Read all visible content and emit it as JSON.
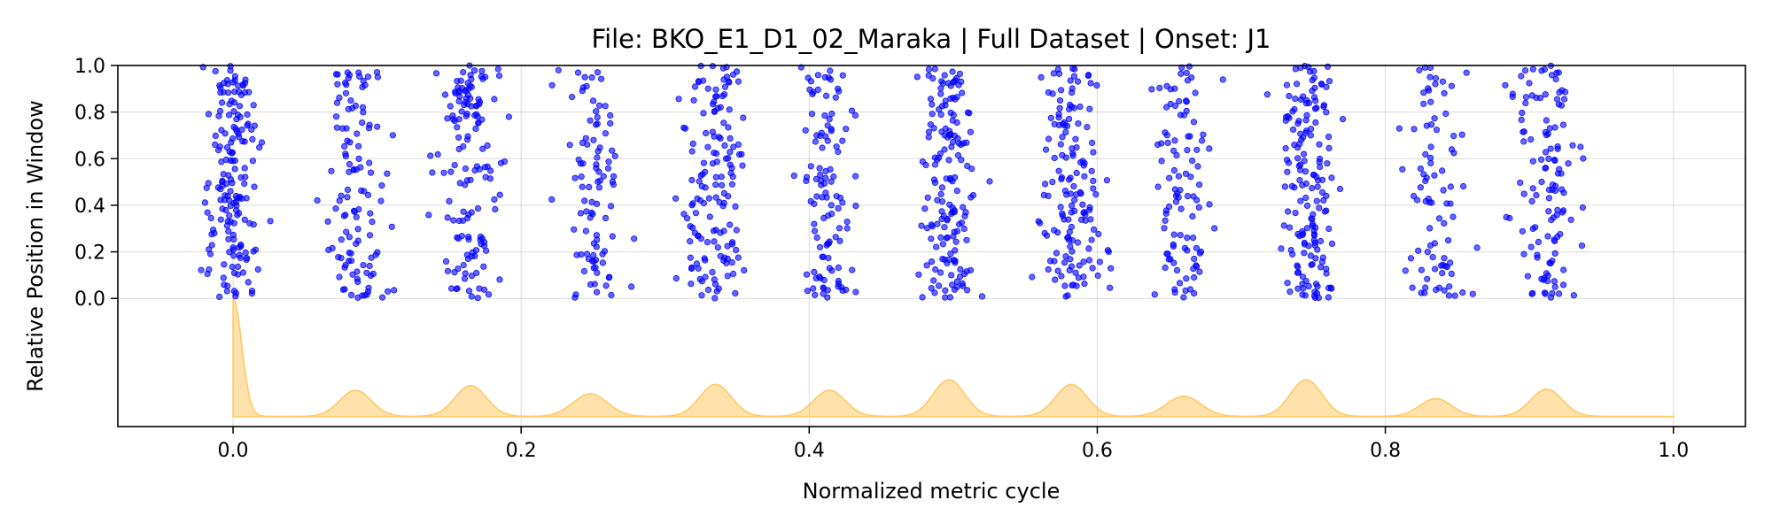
{
  "chart_data": {
    "type": "scatter",
    "title": "File: BKO_E1_D1_02_Maraka | Full Dataset | Onset: J1",
    "xlabel": "Normalized metric cycle",
    "ylabel": "Relative Position in Window",
    "xlim": [
      -0.08,
      1.05
    ],
    "ylim": [
      -0.55,
      1.0
    ],
    "x_ticks": [
      "0.0",
      "0.2",
      "0.4",
      "0.6",
      "0.8",
      "1.0"
    ],
    "x_tick_values": [
      0.0,
      0.2,
      0.4,
      0.6,
      0.8,
      1.0
    ],
    "y_ticks": [
      "0.0",
      "0.2",
      "0.4",
      "0.6",
      "0.8",
      "1.0"
    ],
    "y_tick_values": [
      0.0,
      0.2,
      0.4,
      0.6,
      0.8,
      1.0
    ],
    "grid": true,
    "scatter_color": "#0000ff",
    "density_color": "#ffc966",
    "onset_clusters": [
      {
        "center": 0.0,
        "spread": 0.008,
        "count": 170
      },
      {
        "center": 0.085,
        "spread": 0.009,
        "count": 115
      },
      {
        "center": 0.163,
        "spread": 0.009,
        "count": 140
      },
      {
        "center": 0.25,
        "spread": 0.009,
        "count": 95
      },
      {
        "center": 0.335,
        "spread": 0.009,
        "count": 145
      },
      {
        "center": 0.414,
        "spread": 0.008,
        "count": 110
      },
      {
        "center": 0.497,
        "spread": 0.009,
        "count": 160
      },
      {
        "center": 0.582,
        "spread": 0.009,
        "count": 150
      },
      {
        "center": 0.66,
        "spread": 0.009,
        "count": 100
      },
      {
        "center": 0.745,
        "spread": 0.009,
        "count": 165
      },
      {
        "center": 0.835,
        "spread": 0.008,
        "count": 85
      },
      {
        "center": 0.912,
        "spread": 0.009,
        "count": 120
      }
    ],
    "density_peaks": [
      {
        "x": 0.0,
        "height": 1.0,
        "width": 0.006
      },
      {
        "x": 0.085,
        "height": 0.22,
        "width": 0.011
      },
      {
        "x": 0.165,
        "height": 0.26,
        "width": 0.011
      },
      {
        "x": 0.248,
        "height": 0.19,
        "width": 0.012
      },
      {
        "x": 0.335,
        "height": 0.27,
        "width": 0.011
      },
      {
        "x": 0.414,
        "height": 0.22,
        "width": 0.011
      },
      {
        "x": 0.497,
        "height": 0.31,
        "width": 0.011
      },
      {
        "x": 0.582,
        "height": 0.27,
        "width": 0.011
      },
      {
        "x": 0.66,
        "height": 0.17,
        "width": 0.012
      },
      {
        "x": 0.745,
        "height": 0.31,
        "width": 0.011
      },
      {
        "x": 0.835,
        "height": 0.15,
        "width": 0.011
      },
      {
        "x": 0.912,
        "height": 0.23,
        "width": 0.011
      }
    ],
    "density_range": [
      0.0,
      1.0
    ]
  }
}
